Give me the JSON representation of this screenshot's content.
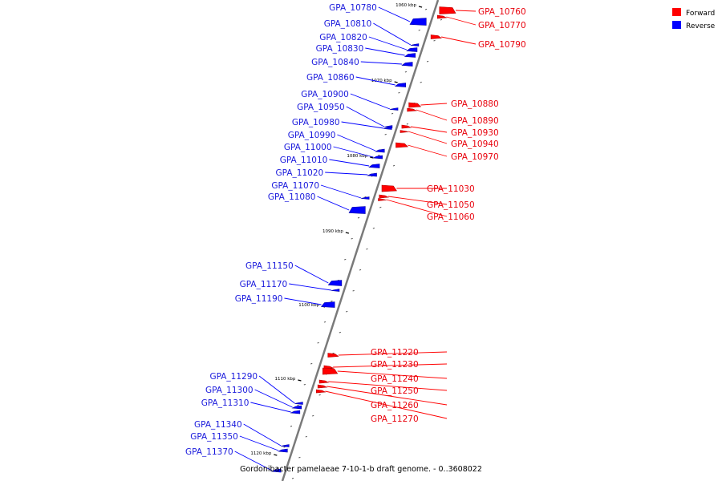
{
  "caption": "Gordonibacter pamelaeae 7-10-1-b draft genome. - 0..3608022",
  "legend": [
    {
      "label": "Forward",
      "color": "#ff0000"
    },
    {
      "label": "Reverse",
      "color": "#0000ff"
    }
  ],
  "colors": {
    "forward": "#ff0000",
    "reverse": "#0000ff",
    "axis": "#808080"
  },
  "kbp_labels": [
    "1060 kbp",
    "1070 kbp",
    "1080 kbp",
    "1090 kbp",
    "1100 kbp",
    "1110 kbp",
    "1120 kbp"
  ],
  "forward_genes": [
    "GPA_10760",
    "GPA_10770",
    "GPA_10790",
    "GPA_10880",
    "GPA_10890",
    "GPA_10930",
    "GPA_10940",
    "GPA_10970",
    "GPA_11030",
    "GPA_11050",
    "GPA_11060",
    "GPA_11220",
    "GPA_11230",
    "GPA_11240",
    "GPA_11250",
    "GPA_11260",
    "GPA_11270"
  ],
  "reverse_genes": [
    "GPA_10780",
    "GPA_10810",
    "GPA_10820",
    "GPA_10830",
    "GPA_10840",
    "GPA_10860",
    "GPA_10900",
    "GPA_10950",
    "GPA_10980",
    "GPA_10990",
    "GPA_11000",
    "GPA_11010",
    "GPA_11020",
    "GPA_11070",
    "GPA_11080",
    "GPA_11150",
    "GPA_11170",
    "GPA_11190",
    "GPA_11290",
    "GPA_11300",
    "GPA_11310",
    "GPA_11340",
    "GPA_11350",
    "GPA_11370"
  ]
}
